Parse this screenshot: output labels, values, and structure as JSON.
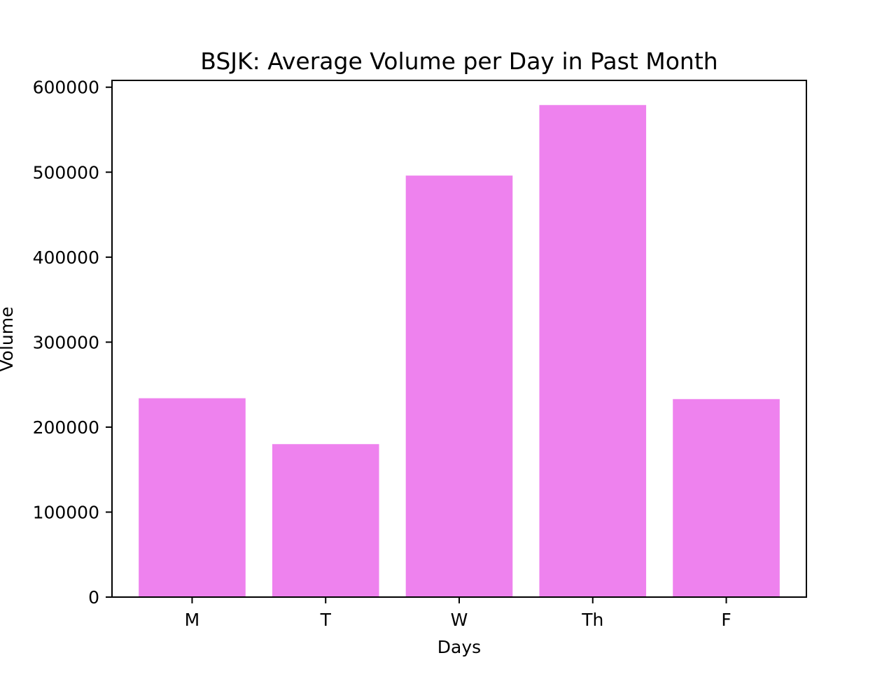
{
  "chart_data": {
    "type": "bar",
    "title": "BSJK: Average Volume per Day in Past Month",
    "xlabel": "Days",
    "ylabel": "Volume",
    "categories": [
      "M",
      "T",
      "W",
      "Th",
      "F"
    ],
    "values": [
      234000,
      180000,
      496000,
      579000,
      233000
    ],
    "ylim": [
      0,
      608000
    ],
    "yticks": [
      0,
      100000,
      200000,
      300000,
      400000,
      500000,
      600000
    ],
    "ytick_labels": [
      "0",
      "100000",
      "200000",
      "300000",
      "400000",
      "500000",
      "600000"
    ],
    "grid": false,
    "legend": "none",
    "bar_color": "#ee82ee"
  }
}
